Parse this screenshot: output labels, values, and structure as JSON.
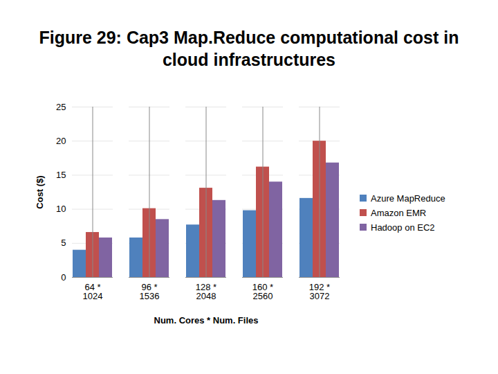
{
  "chart_data": {
    "type": "bar",
    "title": "Figure 29: Cap3 Map.Reduce computational cost in cloud infrastructures",
    "x_label": "Num. Cores * Num. Files",
    "y_label": "Cost ($)",
    "categories": [
      "64 *\n1024",
      "96 *\n1536",
      "128 *\n2048",
      "160 *\n2560",
      "192 *\n3072"
    ],
    "series": [
      {
        "name": "Azure MapReduce",
        "color": "#4f81bd",
        "values": [
          4.0,
          5.8,
          7.7,
          9.8,
          11.6
        ]
      },
      {
        "name": "Amazon EMR",
        "color": "#c0504d",
        "values": [
          6.6,
          10.1,
          13.1,
          16.2,
          20.0
        ]
      },
      {
        "name": "Hadoop on EC2",
        "color": "#8064a2",
        "values": [
          5.8,
          8.5,
          11.3,
          14.0,
          16.8
        ]
      }
    ],
    "ylim": [
      0,
      25
    ],
    "yticks": [
      0,
      5,
      10,
      15,
      20,
      25
    ],
    "grid": true,
    "legend": "right"
  }
}
